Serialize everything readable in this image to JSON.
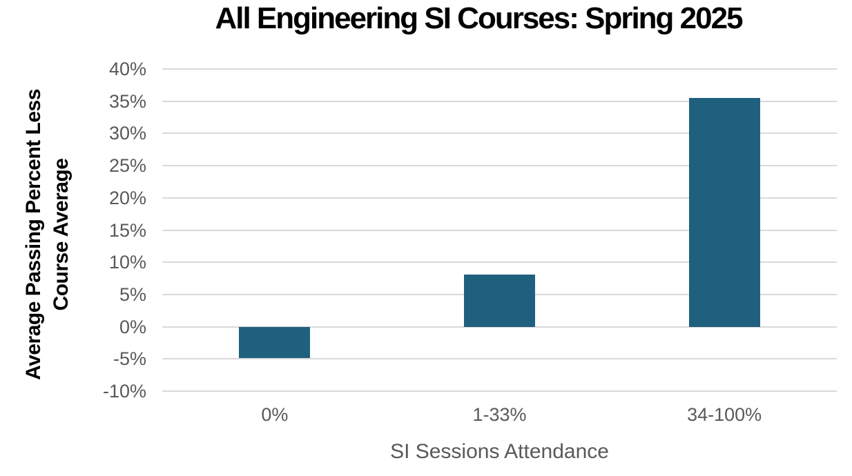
{
  "chart_data": {
    "type": "bar",
    "title": "All Engineering SI Courses: Spring 2025",
    "categories": [
      "0%",
      "1-33%",
      "34-100%"
    ],
    "values": [
      -4.9,
      8.1,
      35.5
    ],
    "xlabel": "SI Sessions Attendance",
    "ylabel": "Average Passing Percent Less Course Average",
    "ylabel_lines": [
      "Average Passing Percent Less",
      "Course Average"
    ],
    "ylim": [
      -10,
      40
    ],
    "ytick_step": 5,
    "yticks": [
      "40%",
      "35%",
      "30%",
      "25%",
      "20%",
      "15%",
      "10%",
      "5%",
      "0%",
      "-5%",
      "-10%"
    ],
    "grid": true,
    "legend": false,
    "colors": {
      "bar": "#20607F",
      "gridline": "#D9D9D9",
      "tick_labels": "#595959",
      "x_axis_title": "#595959",
      "title": "#000000",
      "background": "#FFFFFF"
    }
  }
}
